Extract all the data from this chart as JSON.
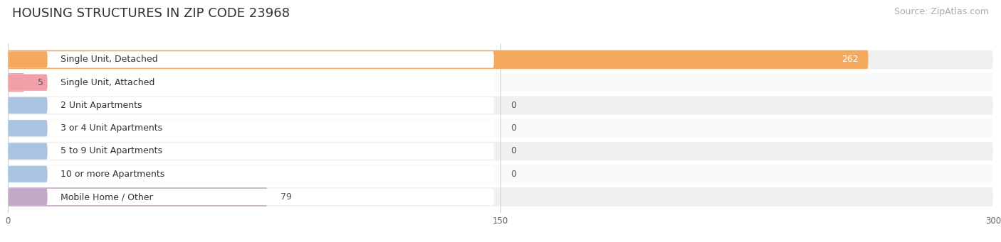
{
  "title": "HOUSING STRUCTURES IN ZIP CODE 23968",
  "source": "Source: ZipAtlas.com",
  "categories": [
    "Single Unit, Detached",
    "Single Unit, Attached",
    "2 Unit Apartments",
    "3 or 4 Unit Apartments",
    "5 to 9 Unit Apartments",
    "10 or more Apartments",
    "Mobile Home / Other"
  ],
  "values": [
    262,
    5,
    0,
    0,
    0,
    0,
    79
  ],
  "bar_colors": [
    "#f5a95c",
    "#f0a0a8",
    "#a8c4e0",
    "#a8c4e0",
    "#a8c4e0",
    "#a8c4e0",
    "#c4a8c8"
  ],
  "row_bg_odd": "#f0f0f0",
  "row_bg_even": "#fafafa",
  "xlim": [
    0,
    300
  ],
  "xticks": [
    0,
    150,
    300
  ],
  "title_fontsize": 13,
  "source_fontsize": 9,
  "bar_label_fontsize": 9,
  "category_fontsize": 9,
  "background_color": "#ffffff"
}
